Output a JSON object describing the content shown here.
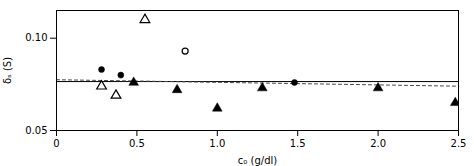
{
  "chart_data": {
    "type": "scatter",
    "xlabel": "c₀ (g/dl)",
    "ylabel": "δₛ (S)",
    "xlim": [
      0,
      2.5
    ],
    "ylim": [
      0.05,
      0.115
    ],
    "xticks": [
      0,
      0.5,
      {
        "value": 1.0,
        "label": "1.0"
      },
      1.5,
      {
        "value": 2.0,
        "label": "2.0"
      },
      2.5
    ],
    "yticks": [
      0.05,
      {
        "value": 0.1,
        "label": "0.10"
      }
    ],
    "grid": false,
    "series": [
      {
        "type": "line",
        "line_style": "solid",
        "color": "#000000",
        "x": [
          0,
          2.5
        ],
        "values": [
          0.0765,
          0.0765
        ]
      },
      {
        "type": "line",
        "line_style": "dashed",
        "color": "#444444",
        "x": [
          0,
          2.5
        ],
        "values": [
          0.0775,
          0.074
        ]
      },
      {
        "type": "scatter",
        "marker": "circle",
        "color": "#000000",
        "x": [
          0.28,
          0.4,
          1.48
        ],
        "values": [
          0.083,
          0.08,
          0.076
        ]
      },
      {
        "type": "scatter",
        "marker": "circle_open",
        "color": "#000000",
        "x": [
          0.8
        ],
        "values": [
          0.093
        ]
      },
      {
        "type": "scatter",
        "marker": "triangle",
        "color": "#000000",
        "x": [
          0.48,
          0.75,
          1.0,
          1.28,
          2.0,
          2.48
        ],
        "values": [
          0.076,
          0.072,
          0.062,
          0.073,
          0.073,
          0.065
        ]
      },
      {
        "type": "scatter",
        "marker": "triangle_open",
        "color": "#000000",
        "x": [
          0.28,
          0.37,
          0.55
        ],
        "values": [
          0.074,
          0.069,
          0.11
        ]
      }
    ]
  }
}
